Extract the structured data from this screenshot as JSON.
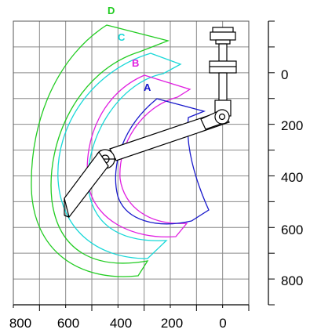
{
  "diagram": {
    "x_ticks": [
      "800",
      "600",
      "400",
      "200",
      "0"
    ],
    "y_ticks": [
      "0",
      "200",
      "400",
      "600",
      "800"
    ],
    "zones": [
      {
        "label": "A",
        "color": "#1a1acc"
      },
      {
        "label": "B",
        "color": "#e01ee0"
      },
      {
        "label": "C",
        "color": "#18d8d8"
      },
      {
        "label": "D",
        "color": "#22cc22"
      }
    ],
    "grid": true
  }
}
